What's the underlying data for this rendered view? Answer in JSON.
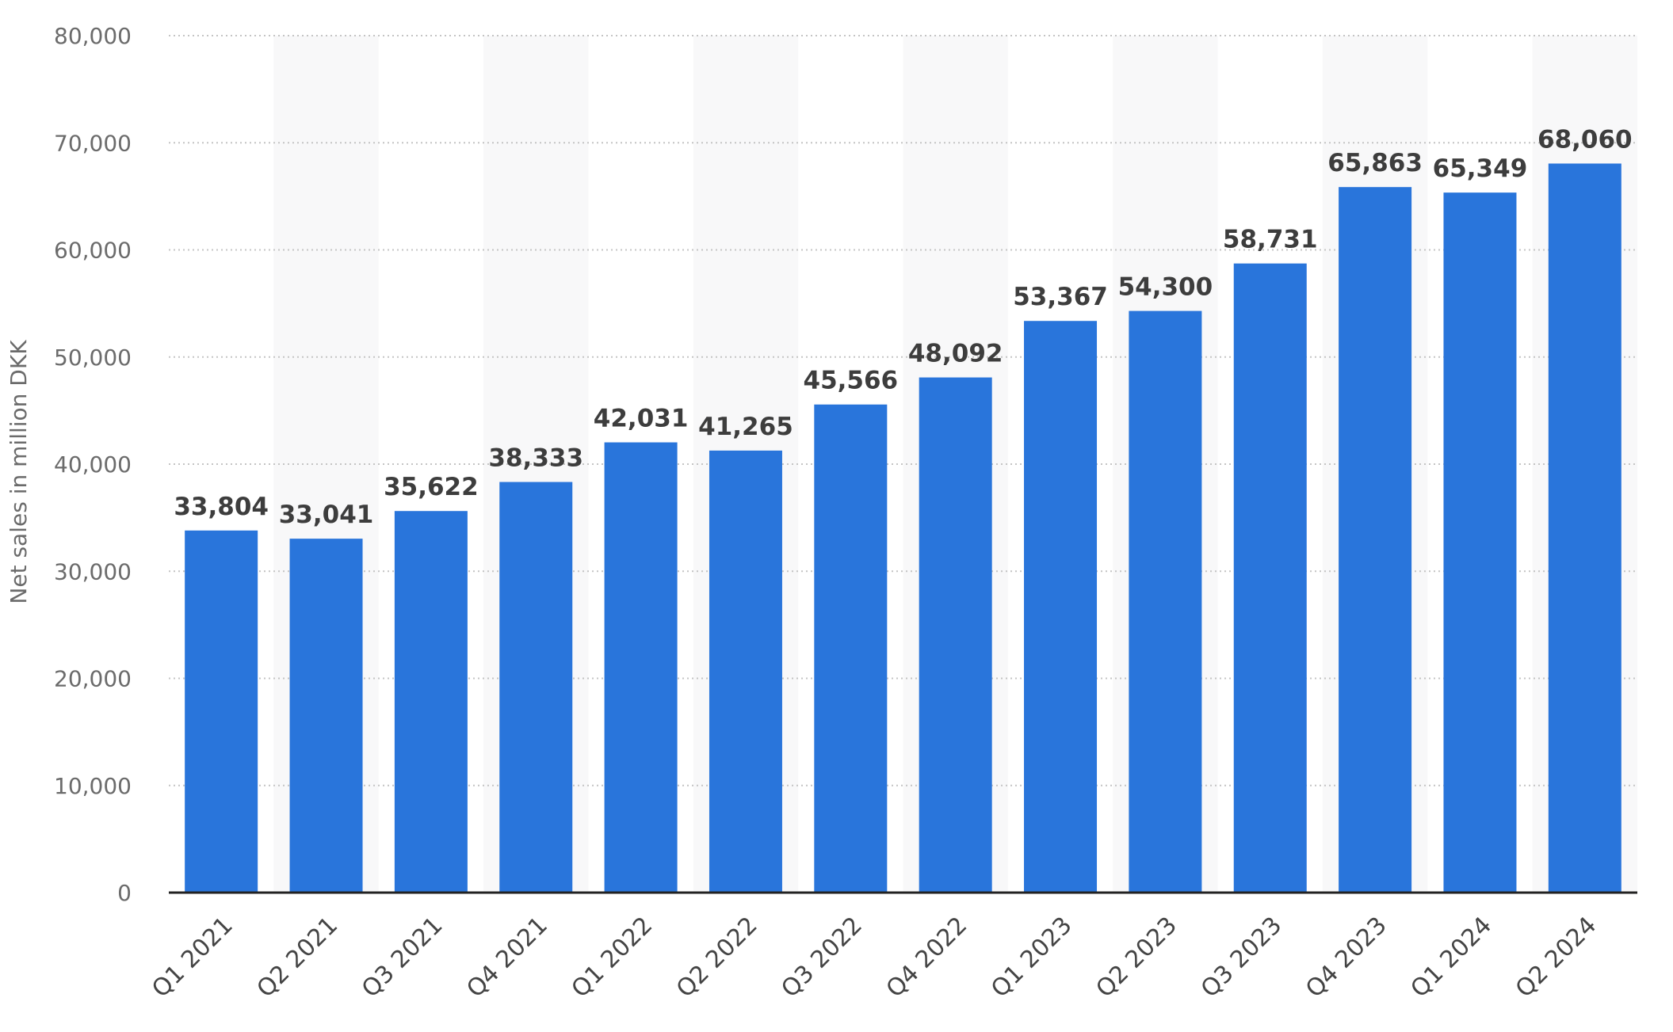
{
  "chart_data": {
    "type": "bar",
    "title": "",
    "xlabel": "",
    "ylabel": "Net sales in million DKK",
    "ylim": [
      0,
      80000
    ],
    "yticks": [
      0,
      10000,
      20000,
      30000,
      40000,
      50000,
      60000,
      70000,
      80000
    ],
    "ytick_labels": [
      "0",
      "10,000",
      "20,000",
      "30,000",
      "40,000",
      "50,000",
      "60,000",
      "70,000",
      "80,000"
    ],
    "categories": [
      "Q1 2021",
      "Q2 2021",
      "Q3 2021",
      "Q4 2021",
      "Q1 2022",
      "Q2 2022",
      "Q3 2022",
      "Q4 2022",
      "Q1 2023",
      "Q2 2023",
      "Q3 2023",
      "Q4 2023",
      "Q1 2024",
      "Q2 2024"
    ],
    "values": [
      33804,
      33041,
      35622,
      38333,
      42031,
      41265,
      45566,
      48092,
      53367,
      54300,
      58731,
      65863,
      65349,
      68060
    ],
    "value_labels": [
      "33,804",
      "33,041",
      "35,622",
      "38,333",
      "42,031",
      "41,265",
      "45,566",
      "48,092",
      "53,367",
      "54,300",
      "58,731",
      "65,863",
      "65,349",
      "68,060"
    ],
    "grid": true,
    "legend": "none",
    "bar_color": "#2975db",
    "band_color": "#f8f8f9"
  }
}
